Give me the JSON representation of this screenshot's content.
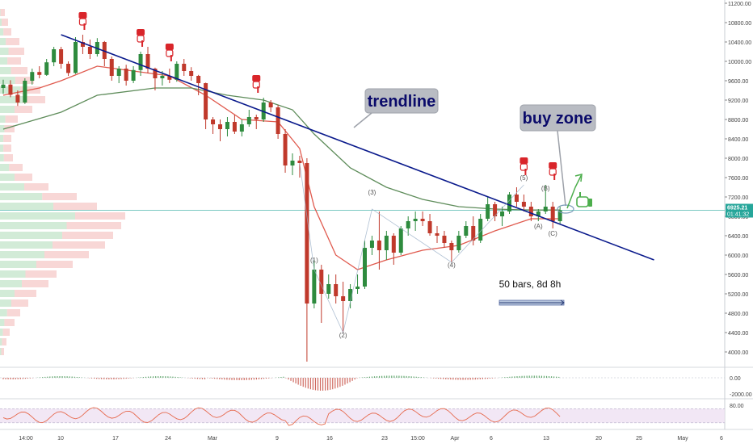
{
  "chart_data": {
    "type": "candlestick",
    "price_axis": {
      "ticks": [
        11200,
        10800,
        10400,
        10000,
        9600,
        9200,
        8800,
        8400,
        8000,
        7600,
        7200,
        6800,
        6400,
        6000,
        5600,
        5200,
        4800,
        4400,
        4000
      ],
      "tick_labels": [
        "11200.00",
        "10800.00",
        "10400.00",
        "10000.00",
        "9600.00",
        "9200.00",
        "8800.00",
        "8400.00",
        "8000.00",
        "7600.00",
        "7200.00",
        "6800.00",
        "6400.00",
        "6000.00",
        "5600.00",
        "5200.00",
        "4800.00",
        "4400.00",
        "4000.00"
      ],
      "range": [
        3900,
        11300
      ]
    },
    "time_axis": {
      "labels": [
        "14:00",
        "10",
        "17",
        "24",
        "Mar",
        "9",
        "16",
        "23",
        "15:00",
        "Apr",
        "6",
        "13",
        "20",
        "25",
        "May",
        "6"
      ],
      "start_day": 37,
      "day_range": [
        37,
        127
      ]
    },
    "current_price": {
      "label": "6925.21",
      "value": 6925.21,
      "color": "#26a69a"
    },
    "countdown": {
      "label": "01:41:32"
    },
    "candles": [
      [
        37,
        9450,
        9620,
        9330,
        9520
      ],
      [
        38,
        9520,
        9610,
        9260,
        9310
      ],
      [
        39,
        9310,
        9400,
        9080,
        9150
      ],
      [
        40,
        9150,
        9650,
        9120,
        9600
      ],
      [
        41,
        9600,
        9850,
        9520,
        9780
      ],
      [
        42,
        9780,
        9900,
        9650,
        9720
      ],
      [
        43,
        9720,
        10050,
        9700,
        9980
      ],
      [
        44,
        9980,
        10300,
        9900,
        10250
      ],
      [
        45,
        10250,
        10300,
        9850,
        9950
      ],
      [
        46,
        9950,
        10000,
        9700,
        9760
      ],
      [
        47,
        9760,
        10500,
        9740,
        10400
      ],
      [
        48,
        10400,
        10550,
        10150,
        10300
      ],
      [
        49,
        10300,
        10450,
        10050,
        10150
      ],
      [
        50,
        10150,
        10480,
        10100,
        10400
      ],
      [
        51,
        10400,
        10420,
        9900,
        10050
      ],
      [
        52,
        10050,
        10100,
        9600,
        9700
      ],
      [
        53,
        9700,
        9900,
        9550,
        9850
      ],
      [
        54,
        9850,
        9930,
        9500,
        9600
      ],
      [
        55,
        9600,
        9900,
        9550,
        9820
      ],
      [
        56,
        9820,
        10200,
        9700,
        10150
      ],
      [
        57,
        10150,
        10300,
        9750,
        9850
      ],
      [
        58,
        9850,
        9870,
        9400,
        9650
      ],
      [
        59,
        9650,
        9800,
        9500,
        9700
      ],
      [
        60,
        9700,
        9850,
        9550,
        9620
      ],
      [
        61,
        9620,
        10000,
        9580,
        9950
      ],
      [
        62,
        9950,
        10050,
        9700,
        9800
      ],
      [
        63,
        9800,
        9880,
        9600,
        9700
      ],
      [
        64,
        9700,
        9720,
        9300,
        9550
      ],
      [
        65,
        9550,
        9560,
        8600,
        8800
      ],
      [
        66,
        8800,
        8850,
        8500,
        8700
      ],
      [
        67,
        8700,
        8800,
        8350,
        8600
      ],
      [
        68,
        8600,
        8850,
        8450,
        8750
      ],
      [
        69,
        8750,
        8900,
        8500,
        8550
      ],
      [
        70,
        8550,
        8800,
        8450,
        8700
      ],
      [
        71,
        8700,
        9000,
        8650,
        8850
      ],
      [
        72,
        8850,
        8900,
        8600,
        8800
      ],
      [
        73,
        8800,
        9250,
        8750,
        9150
      ],
      [
        74,
        9150,
        9200,
        8950,
        9050
      ],
      [
        75,
        9050,
        9100,
        8400,
        8500
      ],
      [
        76,
        8500,
        8600,
        7700,
        7850
      ],
      [
        77,
        7850,
        8100,
        7650,
        7950
      ],
      [
        78,
        7950,
        8050,
        7600,
        7900
      ],
      [
        79,
        7900,
        8000,
        3800,
        5000
      ],
      [
        80,
        5000,
        5900,
        4900,
        5700
      ],
      [
        81,
        5700,
        5800,
        4600,
        5200
      ],
      [
        82,
        5200,
        5600,
        5100,
        5400
      ],
      [
        83,
        5400,
        5600,
        5000,
        5150
      ],
      [
        84,
        5150,
        5450,
        4400,
        5050
      ],
      [
        85,
        5050,
        5400,
        4900,
        5300
      ],
      [
        86,
        5300,
        5600,
        5200,
        5350
      ],
      [
        87,
        5350,
        6300,
        5300,
        6150
      ],
      [
        88,
        6150,
        6400,
        6000,
        6300
      ],
      [
        89,
        6300,
        6900,
        5700,
        6100
      ],
      [
        90,
        6100,
        6500,
        5900,
        6400
      ],
      [
        91,
        6400,
        6450,
        5800,
        6050
      ],
      [
        92,
        6050,
        6600,
        6000,
        6550
      ],
      [
        93,
        6550,
        6800,
        6400,
        6700
      ],
      [
        94,
        6700,
        6900,
        6500,
        6750
      ],
      [
        95,
        6750,
        6900,
        6600,
        6700
      ],
      [
        96,
        6700,
        6850,
        6400,
        6450
      ],
      [
        97,
        6450,
        6600,
        6250,
        6400
      ],
      [
        98,
        6400,
        6500,
        6150,
        6250
      ],
      [
        99,
        6250,
        6300,
        5850,
        6100
      ],
      [
        100,
        6100,
        6500,
        6050,
        6400
      ],
      [
        101,
        6400,
        6700,
        6350,
        6600
      ],
      [
        102,
        6600,
        6800,
        6200,
        6300
      ],
      [
        103,
        6300,
        6850,
        6250,
        6750
      ],
      [
        104,
        6750,
        7200,
        6700,
        7050
      ],
      [
        105,
        7050,
        7100,
        6700,
        6800
      ],
      [
        106,
        6800,
        7000,
        6600,
        6900
      ],
      [
        107,
        6900,
        7300,
        6850,
        7250
      ],
      [
        108,
        7250,
        7400,
        7000,
        7100
      ],
      [
        109,
        7100,
        7250,
        6900,
        7000
      ],
      [
        110,
        7000,
        7100,
        6700,
        6800
      ],
      [
        111,
        6800,
        6950,
        6700,
        6900
      ],
      [
        112,
        6900,
        7450,
        6850,
        7000
      ],
      [
        113,
        7000,
        7100,
        6550,
        6700
      ],
      [
        114,
        6700,
        7000,
        6650,
        6925
      ]
    ],
    "series": [
      {
        "name": "",
        "color": "#e05a4e",
        "points": [
          [
            37,
            9300
          ],
          [
            42,
            9450
          ],
          [
            45,
            9600
          ],
          [
            50,
            9900
          ],
          [
            55,
            9800
          ],
          [
            60,
            9700
          ],
          [
            65,
            9300
          ],
          [
            70,
            8800
          ],
          [
            75,
            8750
          ],
          [
            78,
            8200
          ],
          [
            80,
            7000
          ],
          [
            83,
            6000
          ],
          [
            86,
            5700
          ],
          [
            90,
            5900
          ],
          [
            95,
            6100
          ],
          [
            100,
            6200
          ],
          [
            105,
            6500
          ],
          [
            110,
            6750
          ],
          [
            114,
            6750
          ]
        ]
      },
      {
        "name": "",
        "color": "#5e8c5a",
        "points": [
          [
            37,
            8600
          ],
          [
            45,
            8950
          ],
          [
            50,
            9300
          ],
          [
            58,
            9450
          ],
          [
            63,
            9450
          ],
          [
            68,
            9300
          ],
          [
            73,
            9200
          ],
          [
            77,
            9000
          ],
          [
            80,
            8500
          ],
          [
            85,
            7800
          ],
          [
            90,
            7400
          ],
          [
            95,
            7150
          ],
          [
            100,
            7000
          ],
          [
            105,
            6950
          ],
          [
            110,
            6930
          ],
          [
            114,
            6930
          ]
        ]
      }
    ],
    "trendline": {
      "points": [
        [
          45,
          10550
        ],
        [
          127,
          5900
        ]
      ],
      "color": "#0a1a8c"
    },
    "annotations": {
      "trendline_label": "trendline",
      "buy_zone_label": "buy zone",
      "bars_label": "50 bars, 8d 8h",
      "wave_labels": [
        {
          "text": "(1)",
          "day": 80,
          "price": 5850
        },
        {
          "text": "(2)",
          "day": 84,
          "price": 4300
        },
        {
          "text": "(3)",
          "day": 88,
          "price": 7250
        },
        {
          "text": "(4)",
          "day": 99,
          "price": 5750
        },
        {
          "text": "(5)",
          "day": 109,
          "price": 7550
        },
        {
          "text": "(A)",
          "day": 111,
          "price": 6550
        },
        {
          "text": "(B)",
          "day": 112,
          "price": 7330
        },
        {
          "text": "(C)",
          "day": 113,
          "price": 6400
        }
      ],
      "pointer_markers": [
        [
          48,
          10650
        ],
        [
          56,
          10300
        ],
        [
          60,
          10000
        ],
        [
          72,
          9350
        ],
        [
          109,
          7650
        ],
        [
          113,
          7550
        ]
      ]
    },
    "volume_profile": [
      [
        11000,
        6,
        0.1
      ],
      [
        10800,
        10,
        0.2
      ],
      [
        10600,
        14,
        0.3
      ],
      [
        10400,
        24,
        0.3
      ],
      [
        10200,
        30,
        0.35
      ],
      [
        10000,
        26,
        0.35
      ],
      [
        9800,
        34,
        0.4
      ],
      [
        9600,
        42,
        0.45
      ],
      [
        9400,
        50,
        0.5
      ],
      [
        9200,
        56,
        0.5
      ],
      [
        9000,
        40,
        0.45
      ],
      [
        8800,
        22,
        0.3
      ],
      [
        8600,
        18,
        0.3
      ],
      [
        8400,
        14,
        0.3
      ],
      [
        8200,
        14,
        0.3
      ],
      [
        8000,
        16,
        0.3
      ],
      [
        7800,
        28,
        0.4
      ],
      [
        7600,
        40,
        0.45
      ],
      [
        7400,
        60,
        0.5
      ],
      [
        7200,
        95,
        0.55
      ],
      [
        7000,
        120,
        0.55
      ],
      [
        6800,
        155,
        0.6
      ],
      [
        6600,
        150,
        0.55
      ],
      [
        6400,
        140,
        0.55
      ],
      [
        6200,
        130,
        0.5
      ],
      [
        6000,
        110,
        0.5
      ],
      [
        5800,
        90,
        0.5
      ],
      [
        5600,
        70,
        0.45
      ],
      [
        5400,
        60,
        0.45
      ],
      [
        5200,
        45,
        0.4
      ],
      [
        5000,
        35,
        0.4
      ],
      [
        4800,
        25,
        0.35
      ],
      [
        4600,
        18,
        0.3
      ],
      [
        4400,
        12,
        0.3
      ],
      [
        4200,
        8,
        0.3
      ],
      [
        4000,
        5,
        0.3
      ]
    ],
    "macd": {
      "zero_label": "0.00",
      "ticks": [
        {
          "label": "0.00",
          "value": 0
        },
        {
          "label": "-2000.00",
          "value": -2000
        }
      ],
      "range": [
        -2000,
        600
      ]
    },
    "rsi": {
      "ticks": [
        {
          "label": "80.00",
          "value": 80
        }
      ],
      "range": [
        20,
        85
      ],
      "band": [
        30,
        70
      ],
      "color": "#e66a4e"
    }
  }
}
